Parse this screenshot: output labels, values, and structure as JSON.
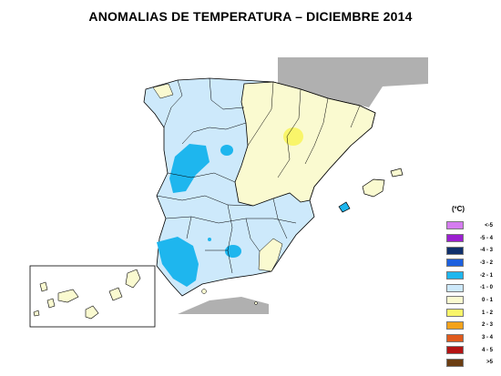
{
  "title": "ANOMALIAS DE TEMPERATURA – DICIEMBRE 2014",
  "legend": {
    "unit": "(ºC)",
    "items": [
      {
        "label": "<-5",
        "color": "#d57cf0"
      },
      {
        "label": "-5 - 4",
        "color": "#9b1fd0"
      },
      {
        "label": "-4 - 3",
        "color": "#10306c"
      },
      {
        "label": "-3 - 2",
        "color": "#1c60de"
      },
      {
        "label": "-2 - 1",
        "color": "#1eb6ee"
      },
      {
        "label": "-1 - 0",
        "color": "#cde9fb"
      },
      {
        "label": "0 - 1",
        "color": "#fafad0"
      },
      {
        "label": "1 - 2",
        "color": "#f9f56a"
      },
      {
        "label": "2 - 3",
        "color": "#f3a21b"
      },
      {
        "label": "3 - 4",
        "color": "#e05a1c"
      },
      {
        "label": "4 - 5",
        "color": "#b41414"
      },
      {
        "label": ">5",
        "color": "#6b3d12"
      }
    ]
  },
  "colors": {
    "neighbor_land": "#b0b0b0",
    "border": "#000000"
  }
}
